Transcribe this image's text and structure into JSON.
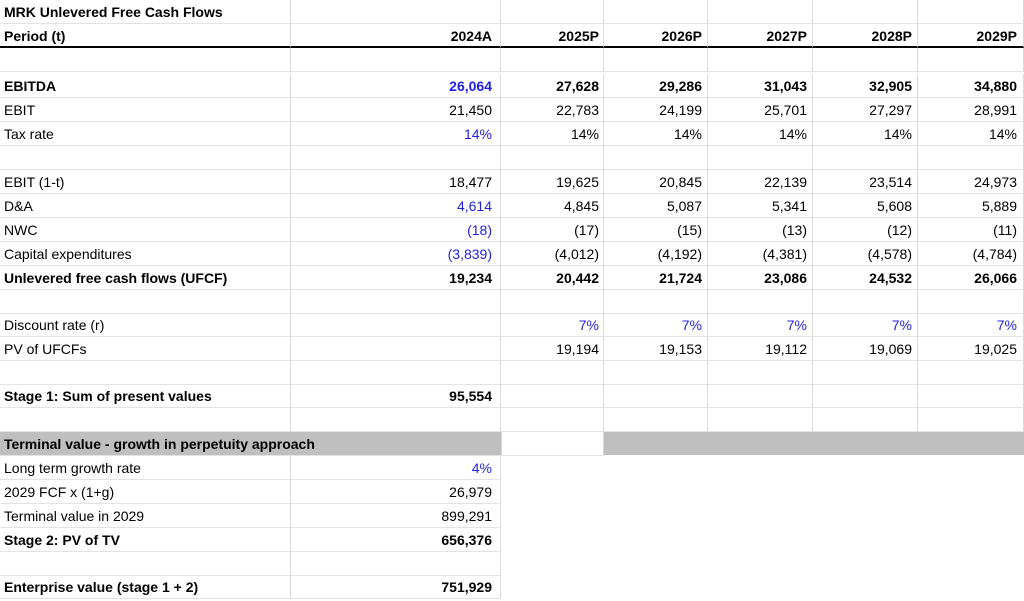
{
  "title": "MRK Unlevered Free Cash Flows",
  "header": {
    "label": "Period (t)",
    "periods": [
      "2024A",
      "2025P",
      "2026P",
      "2027P",
      "2028P",
      "2029P"
    ]
  },
  "rows": {
    "ebitda": {
      "label": "EBITDA",
      "values": [
        "26,064",
        "27,628",
        "29,286",
        "31,043",
        "32,905",
        "34,880"
      ]
    },
    "ebit": {
      "label": "EBIT",
      "values": [
        "21,450",
        "22,783",
        "24,199",
        "25,701",
        "27,297",
        "28,991"
      ]
    },
    "tax_rate": {
      "label": "Tax rate",
      "values": [
        "14%",
        "14%",
        "14%",
        "14%",
        "14%",
        "14%"
      ]
    },
    "ebit_1t": {
      "label": "EBIT (1-t)",
      "values": [
        "18,477",
        "19,625",
        "20,845",
        "22,139",
        "23,514",
        "24,973"
      ]
    },
    "da": {
      "label": "D&A",
      "values": [
        "4,614",
        "4,845",
        "5,087",
        "5,341",
        "5,608",
        "5,889"
      ]
    },
    "nwc": {
      "label": "NWC",
      "values": [
        "(18)",
        "(17)",
        "(15)",
        "(13)",
        "(12)",
        "(11)"
      ]
    },
    "capex": {
      "label": "Capital expenditures",
      "values": [
        "(3,839)",
        "(4,012)",
        "(4,192)",
        "(4,381)",
        "(4,578)",
        "(4,784)"
      ]
    },
    "ufcf": {
      "label": "Unlevered free cash flows (UFCF)",
      "values": [
        "19,234",
        "20,442",
        "21,724",
        "23,086",
        "24,532",
        "26,066"
      ]
    },
    "discount_rate": {
      "label": "Discount rate (r)",
      "values": [
        "",
        "7%",
        "7%",
        "7%",
        "7%",
        "7%"
      ]
    },
    "pv_ufcf": {
      "label": "PV of UFCFs",
      "values": [
        "",
        "19,194",
        "19,153",
        "19,112",
        "19,069",
        "19,025"
      ]
    },
    "stage1": {
      "label": "Stage 1: Sum of present values",
      "value": "95,554"
    },
    "tv_header": {
      "label": "Terminal value - growth in perpetuity approach"
    },
    "ltg": {
      "label": "Long term growth rate",
      "value": "4%"
    },
    "fcf_2029": {
      "label": "2029 FCF x (1+g)",
      "value": "26,979"
    },
    "tv_2029": {
      "label": "Terminal value in 2029",
      "value": "899,291"
    },
    "stage2": {
      "label": "Stage 2: PV of TV",
      "value": "656,376"
    },
    "ev": {
      "label": "Enterprise value (stage 1 + 2)",
      "value": "751,929"
    }
  },
  "colors": {
    "input_blue": "#1f1fe6",
    "section_grey": "#bfbfbf"
  }
}
